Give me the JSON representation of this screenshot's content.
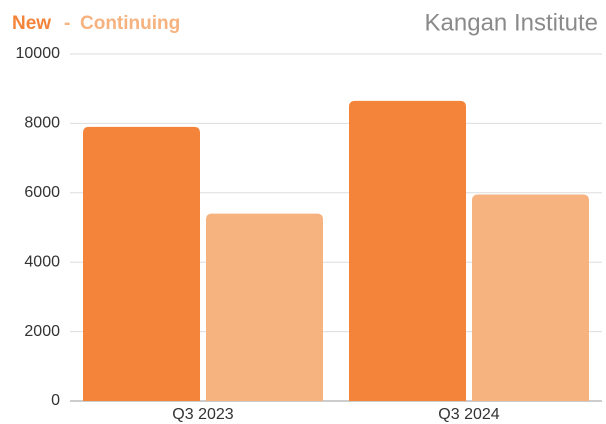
{
  "chart_data": {
    "type": "bar",
    "title": "Kangan Institute",
    "categories": [
      "Q3 2023",
      "Q3 2024"
    ],
    "series": [
      {
        "name": "New",
        "color": "#f3843a",
        "values": [
          7900,
          8650
        ]
      },
      {
        "name": "Continuing",
        "color": "#f6b27f",
        "values": [
          5400,
          5950
        ]
      }
    ],
    "legend_separator": "-",
    "ylim": [
      0,
      10000
    ],
    "yticks": [
      0,
      2000,
      4000,
      6000,
      8000,
      10000
    ],
    "grid": true,
    "legend": "top-left"
  }
}
